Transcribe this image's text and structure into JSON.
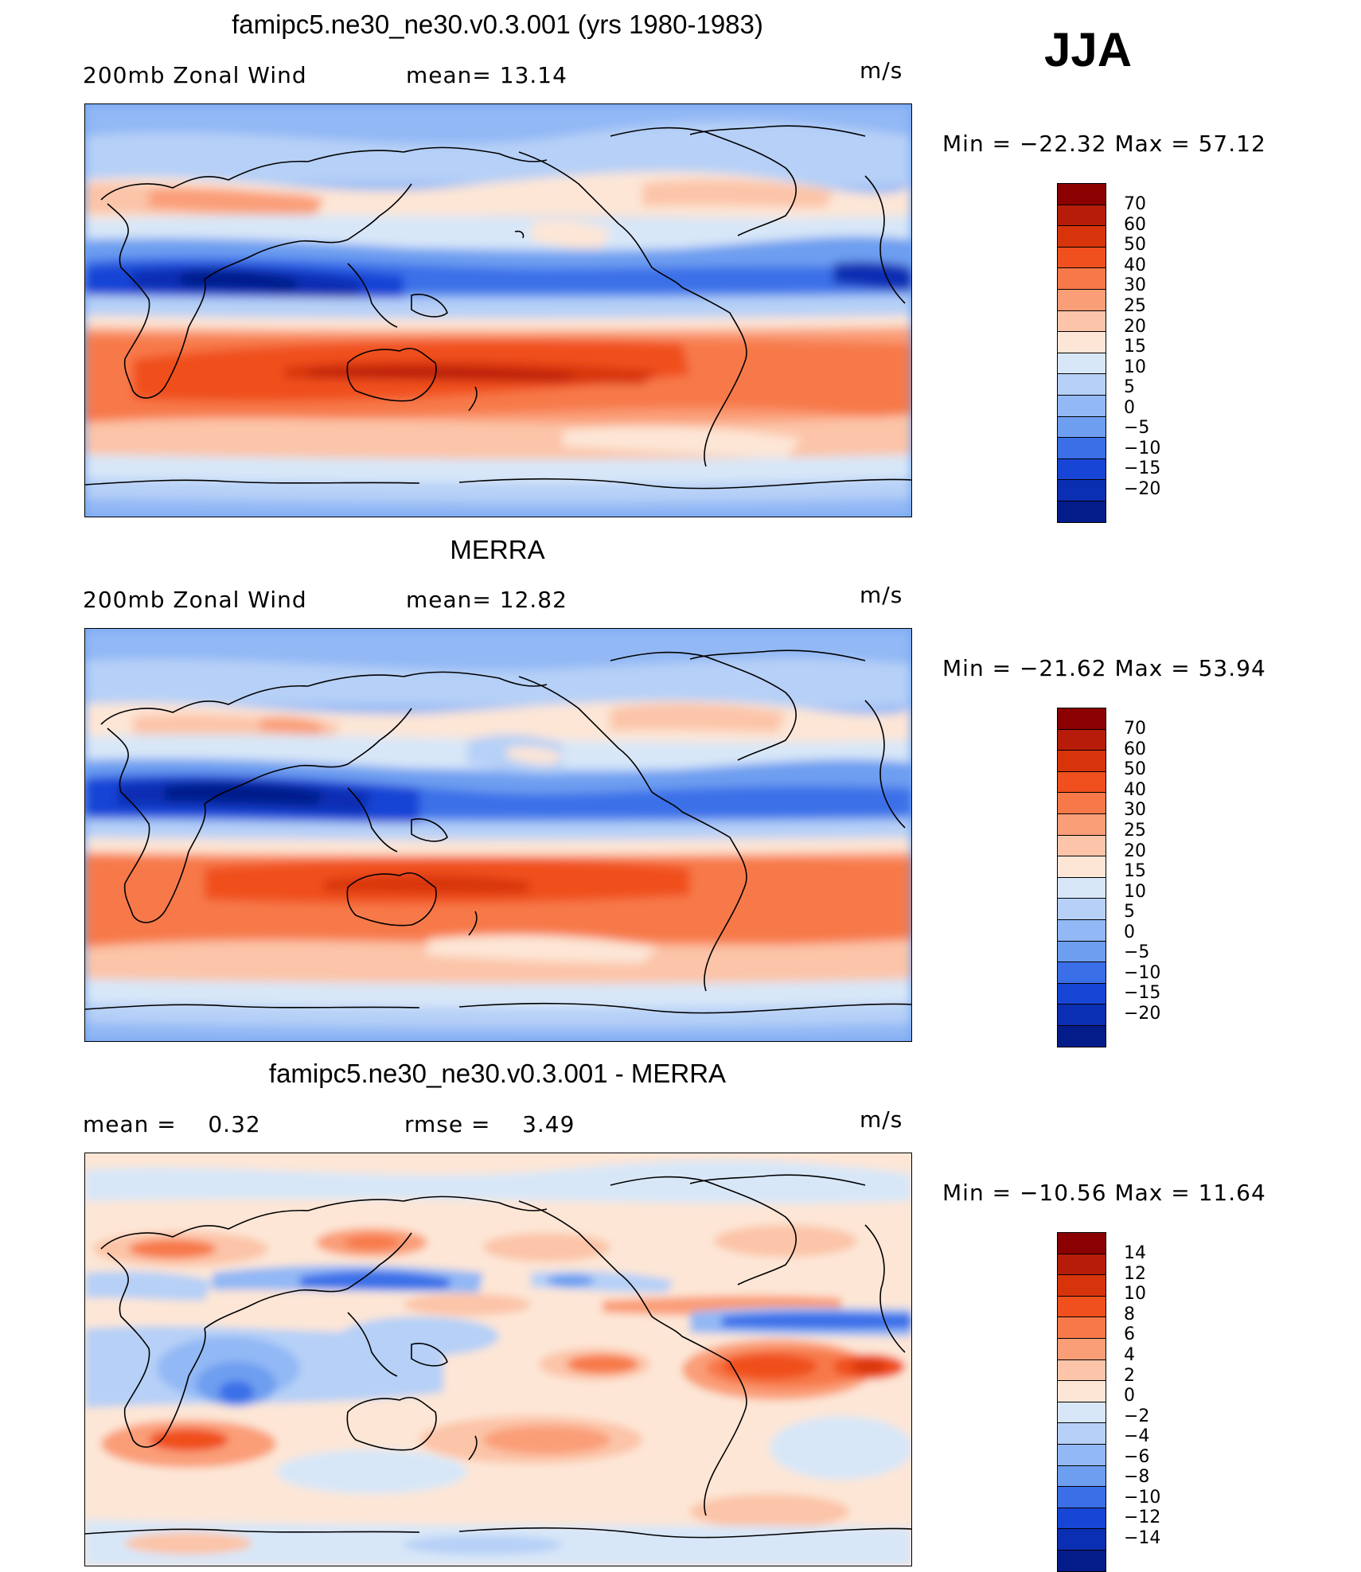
{
  "season": "JJA",
  "panels": [
    {
      "title": "famipc5.ne30_ne30.v0.3.001 (yrs 1980-1983)",
      "left_label": "200mb Zonal Wind",
      "mid_label": "mean=  13.14",
      "units": "m/s",
      "minmax": "Min = −22.32 Max =  57.12",
      "colorbar": {
        "labels": [
          "70",
          "60",
          "50",
          "40",
          "30",
          "25",
          "20",
          "15",
          "10",
          "5",
          "0",
          "−5",
          "−10",
          "−15",
          "−20"
        ],
        "colors": [
          "#8b0000",
          "#b71c0a",
          "#d8340c",
          "#f0501e",
          "#f7794a",
          "#fa9e78",
          "#fcc4a8",
          "#fde6d6",
          "#d8e7f8",
          "#b6d0f7",
          "#92b8f5",
          "#6d9ef0",
          "#3b6fe8",
          "#1745d6",
          "#0b2fb3",
          "#041c8a"
        ]
      }
    },
    {
      "title": "MERRA",
      "left_label": "200mb Zonal Wind",
      "mid_label": "mean=  12.82",
      "units": "m/s",
      "minmax": "Min = −21.62 Max =  53.94",
      "colorbar": {
        "labels": [
          "70",
          "60",
          "50",
          "40",
          "30",
          "25",
          "20",
          "15",
          "10",
          "5",
          "0",
          "−5",
          "−10",
          "−15",
          "−20"
        ],
        "colors": [
          "#8b0000",
          "#b71c0a",
          "#d8340c",
          "#f0501e",
          "#f7794a",
          "#fa9e78",
          "#fcc4a8",
          "#fde6d6",
          "#d8e7f8",
          "#b6d0f7",
          "#92b8f5",
          "#6d9ef0",
          "#3b6fe8",
          "#1745d6",
          "#0b2fb3",
          "#041c8a"
        ]
      }
    },
    {
      "title": "famipc5.ne30_ne30.v0.3.001 - MERRA",
      "left_label": "mean =    0.32",
      "mid_label": "rmse =    3.49",
      "units": "m/s",
      "minmax": "Min = −10.56 Max =  11.64",
      "colorbar": {
        "labels": [
          "14",
          "12",
          "10",
          "8",
          "6",
          "4",
          "2",
          "0",
          "−2",
          "−4",
          "−6",
          "−8",
          "−10",
          "−12",
          "−14"
        ],
        "colors": [
          "#8b0000",
          "#b71c0a",
          "#d8340c",
          "#f0501e",
          "#f7794a",
          "#fa9e78",
          "#fcc4a8",
          "#fde6d6",
          "#d8e7f8",
          "#b6d0f7",
          "#92b8f5",
          "#6d9ef0",
          "#3b6fe8",
          "#1745d6",
          "#0b2fb3",
          "#041c8a"
        ]
      }
    }
  ]
}
